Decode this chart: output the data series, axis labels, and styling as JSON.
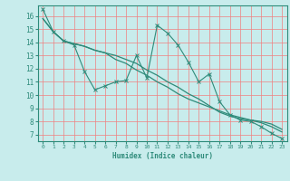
{
  "xlabel": "Humidex (Indice chaleur)",
  "x_values": [
    0,
    1,
    2,
    3,
    4,
    5,
    6,
    7,
    8,
    9,
    10,
    11,
    12,
    13,
    14,
    15,
    16,
    17,
    18,
    19,
    20,
    21,
    22,
    23
  ],
  "line1_y": [
    16.5,
    14.8,
    14.1,
    13.8,
    11.8,
    10.4,
    10.7,
    11.0,
    11.1,
    13.0,
    11.3,
    15.3,
    14.7,
    13.8,
    12.5,
    11.0,
    11.6,
    9.5,
    8.5,
    8.1,
    8.0,
    7.6,
    7.1,
    6.7
  ],
  "line2_y": [
    15.8,
    14.8,
    14.1,
    13.9,
    13.7,
    13.4,
    13.2,
    13.0,
    12.7,
    12.4,
    11.9,
    11.5,
    11.0,
    10.6,
    10.1,
    9.7,
    9.2,
    8.7,
    8.4,
    8.2,
    8.1,
    8.0,
    7.8,
    7.4
  ],
  "line3_y": [
    15.8,
    14.8,
    14.1,
    13.9,
    13.7,
    13.4,
    13.2,
    12.7,
    12.4,
    11.9,
    11.5,
    11.0,
    10.6,
    10.1,
    9.7,
    9.4,
    9.1,
    8.8,
    8.5,
    8.3,
    8.1,
    7.9,
    7.6,
    7.2
  ],
  "line_color": "#2e8b7a",
  "bg_color": "#c8ecec",
  "grid_color": "#f08080",
  "ylim": [
    6.5,
    16.8
  ],
  "xlim": [
    -0.5,
    23.5
  ],
  "yticks": [
    7,
    8,
    9,
    10,
    11,
    12,
    13,
    14,
    15,
    16
  ],
  "xticks": [
    0,
    1,
    2,
    3,
    4,
    5,
    6,
    7,
    8,
    9,
    10,
    11,
    12,
    13,
    14,
    15,
    16,
    17,
    18,
    19,
    20,
    21,
    22,
    23
  ]
}
